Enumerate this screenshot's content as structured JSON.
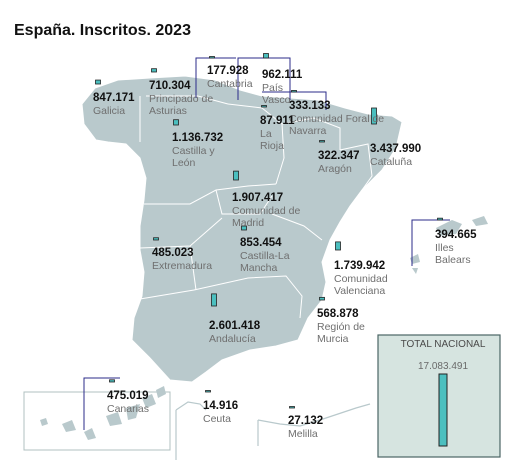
{
  "title": "España. Inscritos. 2023",
  "colors": {
    "land": "#b9c9cc",
    "land_border": "#ffffff",
    "bar_fill": "#4bbfbf",
    "bar_stroke": "#222222",
    "leader": "#2b2b8a",
    "inset_frame": "#b0c0c0",
    "total_box": "#d6e4e0",
    "total_box_border": "#4b6565"
  },
  "regions": [
    {
      "id": "galicia",
      "name": "Galicia",
      "value": 847171,
      "value_text": "847.171"
    },
    {
      "id": "asturias",
      "name": "Principado de Asturias",
      "value": 710304,
      "value_text": "710.304"
    },
    {
      "id": "cantabria",
      "name": "Cantabria",
      "value": 177928,
      "value_text": "177.928"
    },
    {
      "id": "pais-vasco",
      "name": "País Vasco",
      "value": 962111,
      "value_text": "962.111"
    },
    {
      "id": "navarra",
      "name": "Comunidad Foral de Navarra",
      "value": 333133,
      "value_text": "333.133"
    },
    {
      "id": "la-rioja",
      "name": "La Rioja",
      "value": 87911,
      "value_text": "87.911"
    },
    {
      "id": "castilla-leon",
      "name": "Castilla y León",
      "value": 1136732,
      "value_text": "1.136.732"
    },
    {
      "id": "aragon",
      "name": "Aragón",
      "value": 322347,
      "value_text": "322.347"
    },
    {
      "id": "cataluna",
      "name": "Cataluña",
      "value": 3437990,
      "value_text": "3.437.990"
    },
    {
      "id": "madrid",
      "name": "Comunidad de Madrid",
      "value": 1907417,
      "value_text": "1.907.417"
    },
    {
      "id": "extremadura",
      "name": "Extremadura",
      "value": 485023,
      "value_text": "485.023"
    },
    {
      "id": "castilla-la-mancha",
      "name": "Castilla-La Mancha",
      "value": 853454,
      "value_text": "853.454"
    },
    {
      "id": "valenciana",
      "name": "Comunidad Valenciana",
      "value": 1739942,
      "value_text": "1.739.942"
    },
    {
      "id": "baleares",
      "name": "Illes Balears",
      "value": 394665,
      "value_text": "394.665"
    },
    {
      "id": "andalucia",
      "name": "Andalucía",
      "value": 2601418,
      "value_text": "2.601.418"
    },
    {
      "id": "murcia",
      "name": "Región de Murcia",
      "value": 568878,
      "value_text": "568.878"
    },
    {
      "id": "canarias",
      "name": "Canarias",
      "value": 475019,
      "value_text": "475.019"
    },
    {
      "id": "ceuta",
      "name": "Ceuta",
      "value": 14916,
      "value_text": "14.916"
    },
    {
      "id": "melilla",
      "name": "Melilla",
      "value": 27132,
      "value_text": "27.132"
    }
  ],
  "total": {
    "label": "TOTAL NACIONAL",
    "value": 17083491,
    "value_text": "17.083.491"
  }
}
